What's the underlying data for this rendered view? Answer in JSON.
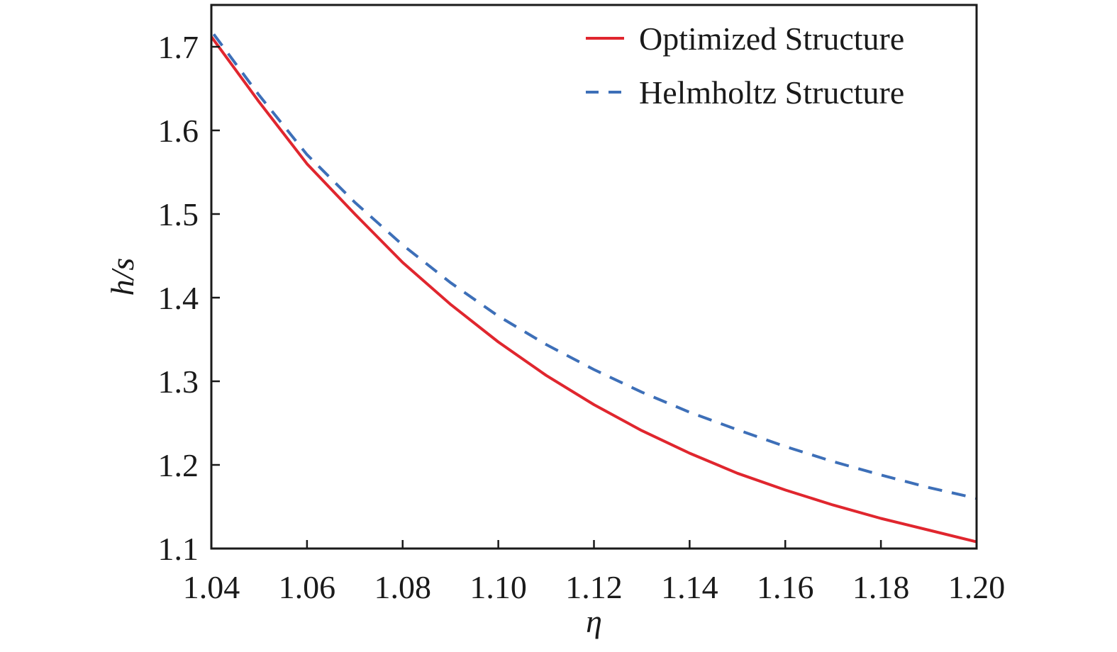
{
  "chart_data": {
    "type": "line",
    "title": "",
    "xlabel": "η",
    "ylabel": "h/s",
    "xlim": [
      1.04,
      1.2
    ],
    "ylim": [
      1.1,
      1.75
    ],
    "xticks": [
      1.04,
      1.06,
      1.08,
      1.1,
      1.12,
      1.14,
      1.16,
      1.18,
      1.2
    ],
    "xtick_labels": [
      "1.04",
      "1.06",
      "1.08",
      "1.10",
      "1.12",
      "1.14",
      "1.16",
      "1.18",
      "1.20"
    ],
    "yticks": [
      1.1,
      1.2,
      1.3,
      1.4,
      1.5,
      1.6,
      1.7
    ],
    "ytick_labels": [
      "1.1",
      "1.2",
      "1.3",
      "1.4",
      "1.5",
      "1.6",
      "1.7"
    ],
    "grid": false,
    "legend_position": "top-right",
    "series": [
      {
        "name": "Optimized Structure",
        "color": "#e0262e",
        "style": "solid",
        "x": [
          1.04,
          1.05,
          1.06,
          1.07,
          1.08,
          1.09,
          1.1,
          1.11,
          1.12,
          1.13,
          1.14,
          1.15,
          1.16,
          1.17,
          1.18,
          1.19,
          1.2
        ],
        "y": [
          1.712,
          1.634,
          1.56,
          1.5,
          1.442,
          1.392,
          1.347,
          1.307,
          1.272,
          1.241,
          1.214,
          1.19,
          1.17,
          1.152,
          1.136,
          1.122,
          1.108
        ]
      },
      {
        "name": "Helmholtz Structure",
        "color": "#3d6fb8",
        "style": "dashed",
        "x": [
          1.0405,
          1.05,
          1.06,
          1.07,
          1.08,
          1.09,
          1.1,
          1.11,
          1.12,
          1.13,
          1.14,
          1.15,
          1.16,
          1.17,
          1.18,
          1.19,
          1.2
        ],
        "y": [
          1.715,
          1.642,
          1.571,
          1.514,
          1.463,
          1.418,
          1.378,
          1.344,
          1.314,
          1.287,
          1.263,
          1.242,
          1.222,
          1.204,
          1.188,
          1.173,
          1.16
        ]
      }
    ]
  }
}
